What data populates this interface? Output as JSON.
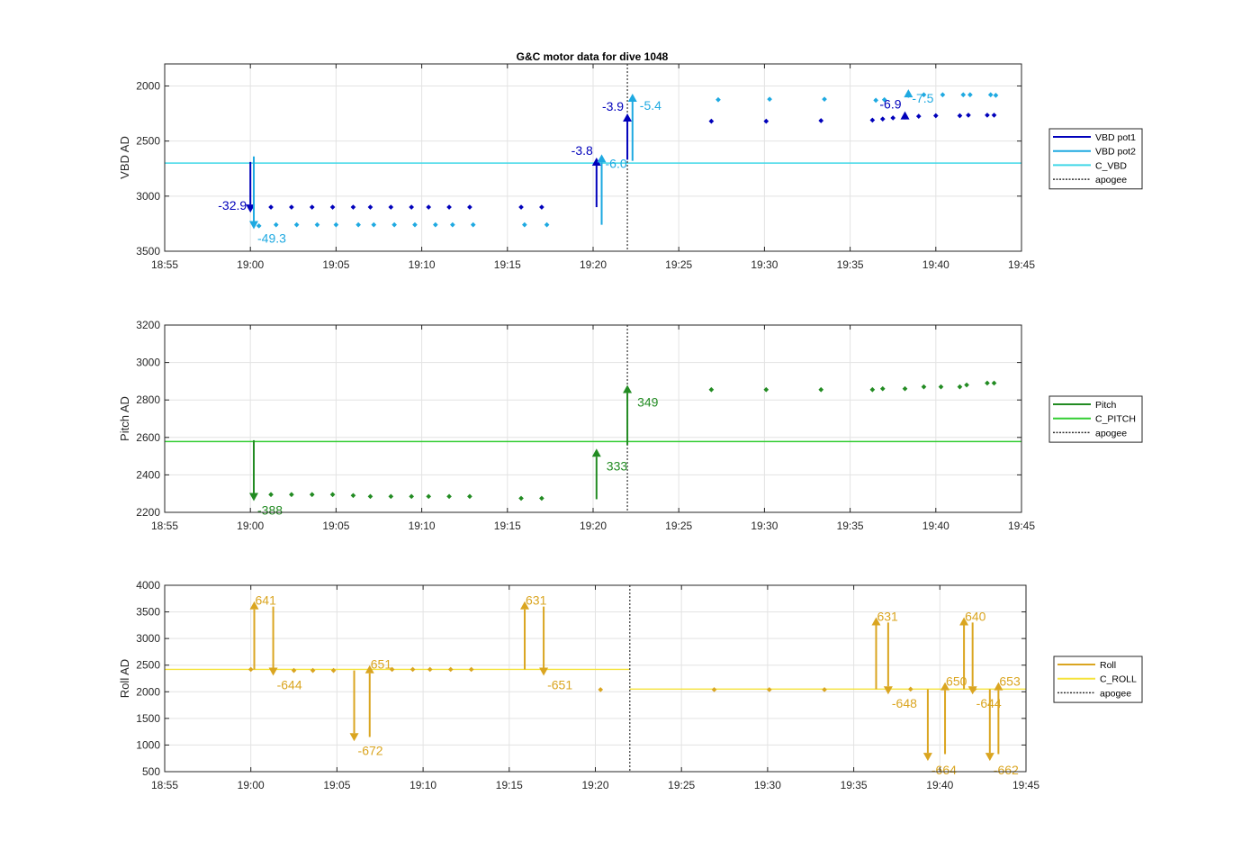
{
  "title": "G&C motor data for dive 1048",
  "chart_data": [
    {
      "type": "scatter",
      "ylabel": "VBD AD",
      "ylim": [
        1800,
        3500
      ],
      "y_reversed": true,
      "yticks": [
        2000,
        2500,
        3000,
        3500
      ],
      "xlim": [
        "18:55",
        "19:45"
      ],
      "xticks": [
        "18:55",
        "19:00",
        "19:05",
        "19:10",
        "19:15",
        "19:20",
        "19:25",
        "19:30",
        "19:35",
        "19:40",
        "19:45"
      ],
      "grid": true,
      "legend_position": "right",
      "legend": [
        {
          "label": "VBD pot1",
          "color": "#0000bb",
          "style": "solid"
        },
        {
          "label": "VBD pot2",
          "color": "#1ea9e1",
          "style": "solid"
        },
        {
          "label": "C_VBD",
          "color": "#40d8e8",
          "style": "solid"
        },
        {
          "label": "apogee",
          "color": "#333333",
          "style": "dotted"
        }
      ],
      "series": [
        {
          "name": "VBD pot1",
          "color": "#0000bb",
          "x": [
            "19:00.0",
            "19:01.2",
            "19:02.4",
            "19:03.6",
            "19:04.8",
            "19:06.0",
            "19:07.0",
            "19:08.2",
            "19:09.4",
            "19:10.4",
            "19:11.6",
            "19:12.8",
            "19:15.8",
            "19:17.0",
            "19:26.9",
            "19:30.1",
            "19:33.3",
            "19:36.3",
            "19:36.9",
            "19:37.5",
            "19:39.0",
            "19:40.0",
            "19:41.4",
            "19:41.9",
            "19:43.0",
            "19:43.4"
          ],
          "y": [
            3110,
            3100,
            3100,
            3100,
            3100,
            3100,
            3100,
            3100,
            3100,
            3100,
            3100,
            3100,
            3100,
            3100,
            2320,
            2320,
            2315,
            2310,
            2300,
            2290,
            2275,
            2270,
            2270,
            2265,
            2265,
            2265
          ]
        },
        {
          "name": "VBD pot2",
          "color": "#1ea9e1",
          "x": [
            "19:00.5",
            "19:01.5",
            "19:02.7",
            "19:03.9",
            "19:05.0",
            "19:06.3",
            "19:07.2",
            "19:08.4",
            "19:09.6",
            "19:10.8",
            "19:11.8",
            "19:13.0",
            "19:16.0",
            "19:17.3",
            "19:27.3",
            "19:30.3",
            "19:33.5",
            "19:36.5",
            "19:37.0",
            "19:38.4",
            "19:39.3",
            "19:40.4",
            "19:41.6",
            "19:42.0",
            "19:43.2",
            "19:43.5"
          ],
          "y": [
            3270,
            3260,
            3260,
            3260,
            3260,
            3260,
            3260,
            3260,
            3260,
            3260,
            3260,
            3260,
            3260,
            3260,
            2125,
            2120,
            2120,
            2130,
            2125,
            2085,
            2080,
            2080,
            2080,
            2080,
            2080,
            2085
          ]
        },
        {
          "name": "C_VBD",
          "color": "#40d8e8",
          "constant": 2700
        }
      ],
      "arrows": [
        {
          "series": "VBD pot1",
          "x": "19:00.0",
          "from": 2690,
          "to": 3150,
          "label": "-32.9",
          "label_side": "left"
        },
        {
          "series": "VBD pot2",
          "x": "19:00.2",
          "from": 2640,
          "to": 3300,
          "label": "-49.3",
          "label_side": "below-right"
        },
        {
          "series": "VBD pot1",
          "x": "19:20.2",
          "from": 3100,
          "to": 2650,
          "label": "-3.8",
          "label_side": "left"
        },
        {
          "series": "VBD pot2",
          "x": "19:20.5",
          "from": 3260,
          "to": 2620,
          "label": "-6.0",
          "label_side": "below-right"
        },
        {
          "series": "VBD pot1",
          "x": "19:22.0",
          "from": 2670,
          "to": 2250,
          "label": "-3.9",
          "label_side": "left"
        },
        {
          "series": "VBD pot2",
          "x": "19:22.3",
          "from": 2680,
          "to": 2070,
          "label": "-5.4",
          "label_side": "right"
        },
        {
          "series": "VBD pot1",
          "x": "19:38.2",
          "from": 2300,
          "to": 2230,
          "label": "-6.9",
          "label_side": "left"
        },
        {
          "series": "VBD pot2",
          "x": "19:38.4",
          "from": 2100,
          "to": 2030,
          "label": "-7.5",
          "label_side": "below-right"
        }
      ],
      "apogee": "19:22.0"
    },
    {
      "type": "scatter",
      "ylabel": "Pitch AD",
      "ylim": [
        2200,
        3200
      ],
      "yticks": [
        2200,
        2400,
        2600,
        2800,
        3000,
        3200
      ],
      "xlim": [
        "18:55",
        "19:45"
      ],
      "xticks": [
        "18:55",
        "19:00",
        "19:05",
        "19:10",
        "19:15",
        "19:20",
        "19:25",
        "19:30",
        "19:35",
        "19:40",
        "19:45"
      ],
      "grid": true,
      "legend_position": "right",
      "legend": [
        {
          "label": "Pitch",
          "color": "#228b22",
          "style": "solid"
        },
        {
          "label": "C_PITCH",
          "color": "#32cd32",
          "style": "solid"
        },
        {
          "label": "apogee",
          "color": "#333333",
          "style": "dotted"
        }
      ],
      "series": [
        {
          "name": "Pitch",
          "color": "#228b22",
          "x": [
            "19:01.2",
            "19:02.4",
            "19:03.6",
            "19:04.8",
            "19:06.0",
            "19:07.0",
            "19:08.2",
            "19:09.4",
            "19:10.4",
            "19:11.6",
            "19:12.8",
            "19:15.8",
            "19:17.0",
            "19:26.9",
            "19:30.1",
            "19:33.3",
            "19:36.3",
            "19:36.9",
            "19:38.2",
            "19:39.3",
            "19:40.3",
            "19:41.4",
            "19:41.8",
            "19:43.0",
            "19:43.4"
          ],
          "y": [
            2295,
            2295,
            2295,
            2295,
            2290,
            2285,
            2285,
            2285,
            2285,
            2285,
            2285,
            2275,
            2275,
            2855,
            2855,
            2855,
            2855,
            2860,
            2860,
            2870,
            2870,
            2870,
            2880,
            2890,
            2890
          ]
        },
        {
          "name": "C_PITCH",
          "color": "#32cd32",
          "constant": 2578
        }
      ],
      "arrows": [
        {
          "series": "Pitch",
          "x": "19:00.2",
          "from": 2585,
          "to": 2260,
          "label": "-388",
          "label_side": "below-right"
        },
        {
          "series": "Pitch",
          "x": "19:20.2",
          "from": 2270,
          "to": 2540,
          "label": "333",
          "label_side": "right-low"
        },
        {
          "series": "Pitch",
          "x": "19:22.0",
          "from": 2560,
          "to": 2880,
          "label": "349",
          "label_side": "right-low"
        }
      ],
      "apogee": "19:22.0"
    },
    {
      "type": "scatter",
      "ylabel": "Roll AD",
      "ylim": [
        500,
        4000
      ],
      "yticks": [
        500,
        1000,
        1500,
        2000,
        2500,
        3000,
        3500,
        4000
      ],
      "xlim": [
        "18:55",
        "19:45"
      ],
      "xticks": [
        "18:55",
        "19:00",
        "19:05",
        "19:10",
        "19:15",
        "19:20",
        "19:25",
        "19:30",
        "19:35",
        "19:40",
        "19:45"
      ],
      "grid": true,
      "legend_position": "right",
      "legend": [
        {
          "label": "Roll",
          "color": "#daa520",
          "style": "solid"
        },
        {
          "label": "C_ROLL",
          "color": "#f5e33b",
          "style": "solid"
        },
        {
          "label": "apogee",
          "color": "#333333",
          "style": "dotted"
        }
      ],
      "series": [
        {
          "name": "Roll",
          "color": "#daa520",
          "x": [
            "19:00.0",
            "19:02.5",
            "19:03.6",
            "19:04.8",
            "19:08.2",
            "19:09.4",
            "19:10.4",
            "19:11.6",
            "19:12.8",
            "19:20.3",
            "19:26.9",
            "19:30.1",
            "19:33.3",
            "19:38.3",
            "19:42.0"
          ],
          "y": [
            2420,
            2400,
            2400,
            2400,
            2420,
            2420,
            2420,
            2420,
            2420,
            2040,
            2040,
            2040,
            2040,
            2050,
            2050
          ]
        },
        {
          "name": "C_ROLL",
          "color": "#f5e33b",
          "segments": [
            {
              "from": "18:55",
              "to": "19:22.0",
              "value": 2420
            },
            {
              "from": "19:22.0",
              "to": "19:45",
              "value": 2050
            }
          ]
        }
      ],
      "arrows": [
        {
          "series": "Roll",
          "x": "19:00.2",
          "from": 2420,
          "to": 3700,
          "label": "641",
          "label_side": "top-right"
        },
        {
          "series": "Roll",
          "x": "19:01.3",
          "from": 3600,
          "to": 2300,
          "label": "-644",
          "label_side": "below-right"
        },
        {
          "series": "Roll",
          "x": "19:06.0",
          "from": 2400,
          "to": 1070,
          "label": "-672",
          "label_side": "below-right"
        },
        {
          "series": "Roll",
          "x": "19:06.9",
          "from": 1150,
          "to": 2500,
          "label": "651",
          "label_side": "top-right"
        },
        {
          "series": "Roll",
          "x": "19:15.9",
          "from": 2420,
          "to": 3700,
          "label": "631",
          "label_side": "top-right"
        },
        {
          "series": "Roll",
          "x": "19:17.0",
          "from": 3600,
          "to": 2300,
          "label": "-651",
          "label_side": "below-right"
        },
        {
          "series": "Roll",
          "x": "19:36.3",
          "from": 2050,
          "to": 3400,
          "label": "631",
          "label_side": "top-right"
        },
        {
          "series": "Roll",
          "x": "19:37.0",
          "from": 3300,
          "to": 1950,
          "label": "-648",
          "label_side": "below-right"
        },
        {
          "series": "Roll",
          "x": "19:39.3",
          "from": 2050,
          "to": 700,
          "label": "-664",
          "label_side": "below-right"
        },
        {
          "series": "Roll",
          "x": "19:40.3",
          "from": 830,
          "to": 2180,
          "label": "650",
          "label_side": "top-right"
        },
        {
          "series": "Roll",
          "x": "19:41.4",
          "from": 2050,
          "to": 3400,
          "label": "640",
          "label_side": "top-right"
        },
        {
          "series": "Roll",
          "x": "19:41.9",
          "from": 3300,
          "to": 1950,
          "label": "-644",
          "label_side": "below-right"
        },
        {
          "series": "Roll",
          "x": "19:42.9",
          "from": 2050,
          "to": 700,
          "label": "-662",
          "label_side": "below-right"
        },
        {
          "series": "Roll",
          "x": "19:43.4",
          "from": 830,
          "to": 2180,
          "label": "653",
          "label_side": "top-right"
        }
      ],
      "apogee": "19:22.0"
    }
  ]
}
